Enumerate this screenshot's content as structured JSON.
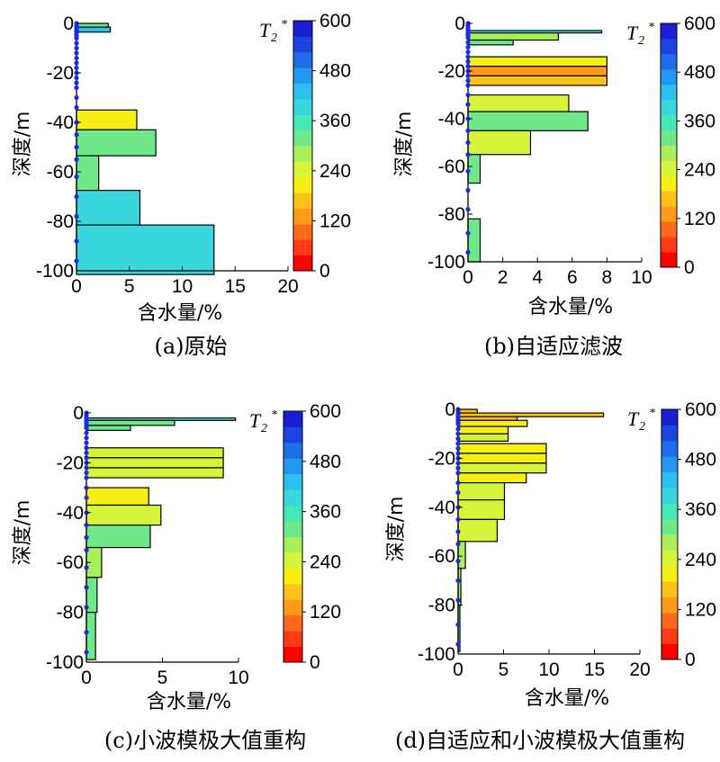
{
  "colorbar": {
    "title": "T",
    "title_sub": "2",
    "title_sup": "*",
    "ticks": [
      "600",
      "480",
      "360",
      "240",
      "120",
      "0"
    ],
    "range": [
      0,
      600
    ],
    "colors": [
      "#ff0000",
      "#ff3a17",
      "#ff6a1a",
      "#ff9a1a",
      "#ffc21a",
      "#f7ef14",
      "#d6f53a",
      "#a8ef5a",
      "#6fe88a",
      "#44e8b6",
      "#3ad8de",
      "#2ec0ef",
      "#2298ee",
      "#1f6de8",
      "#1c45e0",
      "#1a1fd6"
    ]
  },
  "chart_data": [
    {
      "type": "bar",
      "orientation": "horizontal",
      "caption": "(a)原始",
      "xlabel": "含水量/%",
      "ylabel": "深度/m",
      "xlim": [
        0,
        20
      ],
      "ylim": [
        -100,
        0
      ],
      "xticks": [
        "0",
        "5",
        "10",
        "15",
        "20"
      ],
      "yticks": [
        "0",
        "-20",
        "-40",
        "-60",
        "-80",
        "-100"
      ],
      "bars": [
        {
          "top": 0,
          "bottom": -1.5,
          "value": 3.0,
          "t2": 330
        },
        {
          "top": -1.5,
          "bottom": -3.5,
          "value": 3.2,
          "t2": 420
        },
        {
          "top": -35,
          "bottom": -43,
          "value": 5.7,
          "t2": 220
        },
        {
          "top": -43,
          "bottom": -53.5,
          "value": 7.5,
          "t2": 300
        },
        {
          "top": -53.5,
          "bottom": -67.5,
          "value": 2.1,
          "t2": 320
        },
        {
          "top": -67.5,
          "bottom": -81.5,
          "value": 6.0,
          "t2": 380
        },
        {
          "top": -81.5,
          "bottom": -101.5,
          "value": 13.0,
          "t2": 385
        }
      ]
    },
    {
      "type": "bar",
      "orientation": "horizontal",
      "caption": "(b)自适应滤波",
      "xlabel": "含水量/%",
      "ylabel": "深度/m",
      "xlim": [
        0,
        10
      ],
      "ylim": [
        -100,
        0
      ],
      "xticks": [
        "0",
        "2",
        "4",
        "6",
        "8",
        "10"
      ],
      "yticks": [
        "0",
        "-20",
        "-40",
        "-60",
        "-80",
        "-100"
      ],
      "bars": [
        {
          "top": -3,
          "bottom": -4,
          "value": 7.7,
          "t2": 400
        },
        {
          "top": -4,
          "bottom": -7,
          "value": 5.2,
          "t2": 270
        },
        {
          "top": -7,
          "bottom": -9,
          "value": 2.6,
          "t2": 300
        },
        {
          "top": -14,
          "bottom": -18,
          "value": 8.0,
          "t2": 220
        },
        {
          "top": -18,
          "bottom": -22,
          "value": 8.0,
          "t2": 130
        },
        {
          "top": -22,
          "bottom": -26,
          "value": 8.0,
          "t2": 155
        },
        {
          "top": -30,
          "bottom": -37,
          "value": 5.8,
          "t2": 235
        },
        {
          "top": -37,
          "bottom": -45,
          "value": 6.9,
          "t2": 310
        },
        {
          "top": -45,
          "bottom": -55,
          "value": 3.6,
          "t2": 235
        },
        {
          "top": -55,
          "bottom": -67,
          "value": 0.7,
          "t2": 330
        },
        {
          "top": -82,
          "bottom": -100,
          "value": 0.7,
          "t2": 330
        }
      ]
    },
    {
      "type": "bar",
      "orientation": "horizontal",
      "caption": "(c)小波模极大值重构",
      "xlabel": "含水量/%",
      "ylabel": "深度/m",
      "xlim": [
        0,
        10
      ],
      "ylim": [
        -100,
        0
      ],
      "xticks": [
        "0",
        "5",
        "10"
      ],
      "yticks": [
        "0",
        "-20",
        "-40",
        "-60",
        "-80",
        "-100"
      ],
      "bars": [
        {
          "top": -2,
          "bottom": -3,
          "value": 9.8,
          "t2": 380
        },
        {
          "top": -3,
          "bottom": -5,
          "value": 5.8,
          "t2": 300
        },
        {
          "top": -5,
          "bottom": -7,
          "value": 2.9,
          "t2": 320
        },
        {
          "top": -14,
          "bottom": -18,
          "value": 9.0,
          "t2": 230
        },
        {
          "top": -18,
          "bottom": -22,
          "value": 9.0,
          "t2": 225
        },
        {
          "top": -22,
          "bottom": -26,
          "value": 9.0,
          "t2": 240
        },
        {
          "top": -30,
          "bottom": -37,
          "value": 4.1,
          "t2": 215
        },
        {
          "top": -37,
          "bottom": -45,
          "value": 4.9,
          "t2": 260
        },
        {
          "top": -45,
          "bottom": -54,
          "value": 4.2,
          "t2": 300
        },
        {
          "top": -54,
          "bottom": -66,
          "value": 1.0,
          "t2": 290
        },
        {
          "top": -66,
          "bottom": -80,
          "value": 0.7,
          "t2": 310
        },
        {
          "top": -80,
          "bottom": -99,
          "value": 0.6,
          "t2": 330
        }
      ]
    },
    {
      "type": "bar",
      "orientation": "horizontal",
      "caption": "(d)自适应和小波模极大值重构",
      "xlabel": "含水量/%",
      "ylabel": "深度/m",
      "xlim": [
        0,
        20
      ],
      "ylim": [
        -100,
        0
      ],
      "xticks": [
        "0",
        "5",
        "10",
        "15",
        "20"
      ],
      "yticks": [
        "0",
        "-20",
        "-40",
        "-60",
        "-80",
        "-100"
      ],
      "bars": [
        {
          "top": 0,
          "bottom": -1.5,
          "value": 2.1,
          "t2": 150
        },
        {
          "top": -1.5,
          "bottom": -3,
          "value": 16.0,
          "t2": 185
        },
        {
          "top": -3,
          "bottom": -4.5,
          "value": 6.5,
          "t2": 170
        },
        {
          "top": -4.5,
          "bottom": -7,
          "value": 7.6,
          "t2": 210
        },
        {
          "top": -7,
          "bottom": -10,
          "value": 5.5,
          "t2": 220
        },
        {
          "top": -10,
          "bottom": -13,
          "value": 5.5,
          "t2": 230
        },
        {
          "top": -14,
          "bottom": -18,
          "value": 9.7,
          "t2": 215
        },
        {
          "top": -18,
          "bottom": -22,
          "value": 9.7,
          "t2": 210
        },
        {
          "top": -22,
          "bottom": -26,
          "value": 9.7,
          "t2": 225
        },
        {
          "top": -26,
          "bottom": -30,
          "value": 7.5,
          "t2": 215
        },
        {
          "top": -30,
          "bottom": -37,
          "value": 5.1,
          "t2": 235
        },
        {
          "top": -37,
          "bottom": -45,
          "value": 5.1,
          "t2": 245
        },
        {
          "top": -45,
          "bottom": -54,
          "value": 4.3,
          "t2": 255
        },
        {
          "top": -54,
          "bottom": -65,
          "value": 0.8,
          "t2": 270
        },
        {
          "top": -65,
          "bottom": -80,
          "value": 0.3,
          "t2": 290
        },
        {
          "top": -80,
          "bottom": -99,
          "value": 0.2,
          "t2": 300
        }
      ]
    }
  ]
}
